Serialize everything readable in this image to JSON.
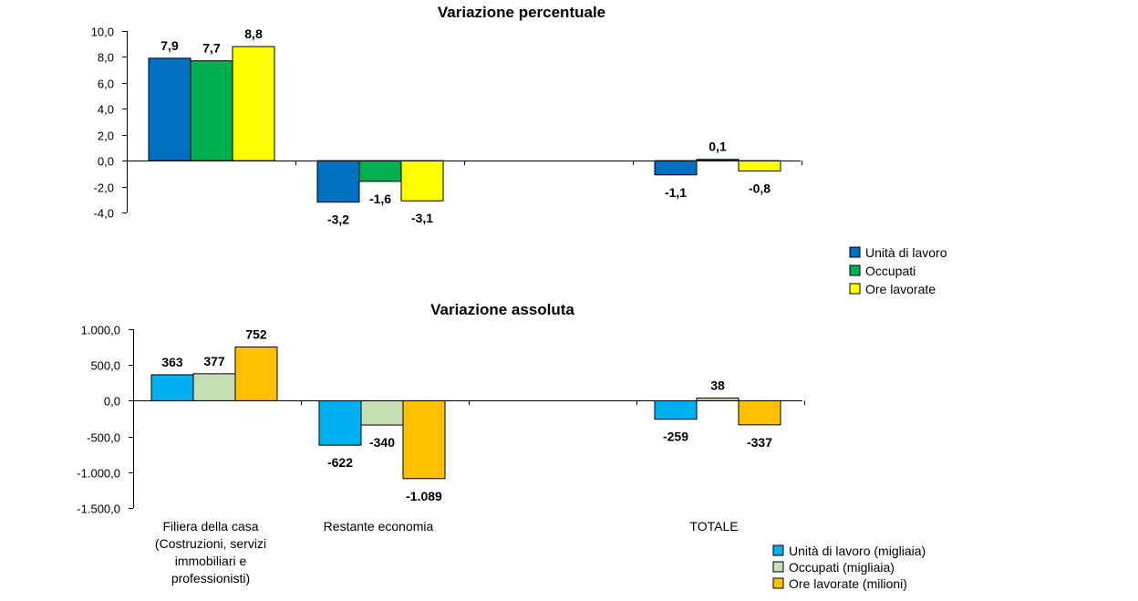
{
  "chart_data": [
    {
      "type": "bar",
      "title": "Variazione percentuale",
      "categories": [
        "Filiera della casa (Costruzioni, servizi immobiliari e professionisti)",
        "Restante economia",
        "",
        "TOTALE"
      ],
      "ylim": [
        -4.0,
        10.0
      ],
      "yticks": [
        10.0,
        8.0,
        6.0,
        4.0,
        2.0,
        0.0,
        -2.0,
        -4.0
      ],
      "ytick_labels": [
        "10,0",
        "8,0",
        "6,0",
        "4,0",
        "2,0",
        "0,0",
        "-2,0",
        "-4,0"
      ],
      "legend_position": "right",
      "series": [
        {
          "name": "Unità di lavoro",
          "color": "#0070C0",
          "values": [
            7.9,
            -3.2,
            null,
            -1.1
          ],
          "labels": [
            "7,9",
            "-3,2",
            "",
            "-1,1"
          ]
        },
        {
          "name": "Occupati",
          "color": "#00B050",
          "values": [
            7.7,
            -1.6,
            null,
            0.1
          ],
          "labels": [
            "7,7",
            "-1,6",
            "",
            "0,1"
          ]
        },
        {
          "name": "Ore lavorate",
          "color": "#FFFF00",
          "values": [
            8.8,
            -3.1,
            null,
            -0.8
          ],
          "labels": [
            "8,8",
            "-3,1",
            "",
            "-0,8"
          ]
        }
      ]
    },
    {
      "type": "bar",
      "title": "Variazione assoluta",
      "categories": [
        "Filiera della casa (Costruzioni, servizi immobiliari e professionisti)",
        "Restante economia",
        "",
        "TOTALE"
      ],
      "category_lines": [
        [
          "Filiera della casa",
          "(Costruzioni, servizi",
          "immobiliari e",
          "professionisti)"
        ],
        [
          "Restante economia"
        ],
        [],
        [
          "TOTALE"
        ]
      ],
      "ylim": [
        -1500.0,
        1000.0
      ],
      "yticks": [
        1000,
        500,
        0,
        -500,
        -1000,
        -1500
      ],
      "ytick_labels": [
        "1.000,0",
        "500,0",
        "0,0",
        "-500,0",
        "-1.000,0",
        "-1.500,0"
      ],
      "legend_position": "bottom-right",
      "series": [
        {
          "name": "Unità di lavoro (migliaia)",
          "color": "#00B0F0",
          "values": [
            363,
            -622,
            null,
            -259
          ],
          "labels": [
            "363",
            "-622",
            "",
            "-259"
          ]
        },
        {
          "name": "Occupati (migliaia)",
          "color": "#C4DFB4",
          "values": [
            377,
            -340,
            null,
            38
          ],
          "labels": [
            "377",
            "-340",
            "",
            "38"
          ]
        },
        {
          "name": "Ore lavorate (milioni)",
          "color": "#FFC000",
          "values": [
            752,
            -1089,
            null,
            -337
          ],
          "labels": [
            "752",
            "-1.089",
            "",
            "-337"
          ]
        }
      ]
    }
  ]
}
